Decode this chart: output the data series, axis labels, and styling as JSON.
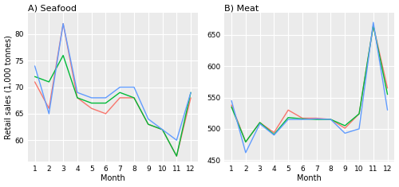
{
  "seafood": {
    "title": "A) Seafood",
    "red_2017": [
      71,
      66,
      82,
      68,
      66,
      65,
      68,
      68,
      63,
      62,
      57,
      68
    ],
    "green_2018": [
      72,
      71,
      76,
      68,
      67,
      67,
      69,
      68,
      63,
      62,
      57,
      69
    ],
    "blue_2019": [
      74,
      65,
      82,
      69,
      68,
      68,
      70,
      70,
      64,
      62,
      60,
      69
    ],
    "ylim": [
      56,
      84
    ],
    "yticks": [
      60,
      65,
      70,
      75,
      80
    ],
    "ylabel": "Retail sales (1,000 tonnes)"
  },
  "meat": {
    "title": "B) Meat",
    "red_2017": [
      538,
      479,
      510,
      494,
      530,
      517,
      517,
      515,
      501,
      524,
      665,
      565
    ],
    "green_2018": [
      535,
      479,
      510,
      491,
      518,
      516,
      515,
      515,
      505,
      524,
      665,
      555
    ],
    "blue_2019": [
      545,
      462,
      508,
      490,
      515,
      515,
      516,
      515,
      493,
      500,
      670,
      530
    ],
    "ylim": [
      448,
      685
    ],
    "yticks": [
      450,
      500,
      550,
      600,
      650
    ],
    "ylabel": ""
  },
  "colors": {
    "red": "#f8766d",
    "green": "#00ba38",
    "blue": "#619cff"
  },
  "xlabel": "Month",
  "months": [
    1,
    2,
    3,
    4,
    5,
    6,
    7,
    8,
    9,
    10,
    11,
    12
  ],
  "bg_color": "#ebebeb",
  "grid_color": "#ffffff",
  "linewidth": 1.0,
  "title_fontsize": 8,
  "axis_fontsize": 7,
  "tick_fontsize": 6.5
}
